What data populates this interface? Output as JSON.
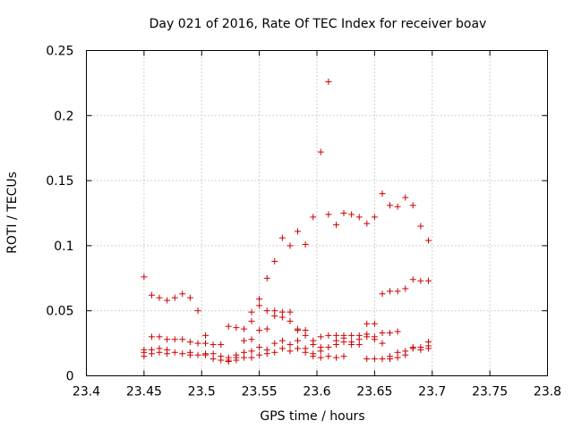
{
  "chart_data": {
    "type": "scatter",
    "title": "Day 021 of 2016, Rate Of TEC Index for receiver boav",
    "xlabel": "GPS time / hours",
    "ylabel": "ROTI / TECUs",
    "xlim": [
      23.4,
      23.8
    ],
    "ylim": [
      0,
      0.25
    ],
    "xticks": [
      23.4,
      23.45,
      23.5,
      23.55,
      23.6,
      23.65,
      23.7,
      23.75,
      23.8
    ],
    "xtick_labels": [
      "23.4",
      "23.45",
      "23.5",
      "23.55",
      "23.6",
      "23.65",
      "23.7",
      "23.75",
      "23.8"
    ],
    "yticks": [
      0,
      0.05,
      0.1,
      0.15,
      0.2,
      0.25
    ],
    "ytick_labels": [
      "0",
      "0.05",
      "0.1",
      "0.15",
      "0.2",
      "0.25"
    ],
    "grid": true,
    "marker": "+",
    "color": "#cc0000",
    "series": [
      {
        "name": "ROTI",
        "points": [
          [
            23.45,
            0.076
          ],
          [
            23.45,
            0.02
          ],
          [
            23.45,
            0.018
          ],
          [
            23.45,
            0.015
          ],
          [
            23.4567,
            0.062
          ],
          [
            23.4567,
            0.03
          ],
          [
            23.4567,
            0.02
          ],
          [
            23.4567,
            0.017
          ],
          [
            23.4633,
            0.06
          ],
          [
            23.4633,
            0.03
          ],
          [
            23.4633,
            0.021
          ],
          [
            23.4633,
            0.018
          ],
          [
            23.47,
            0.058
          ],
          [
            23.47,
            0.028
          ],
          [
            23.47,
            0.02
          ],
          [
            23.47,
            0.017
          ],
          [
            23.4767,
            0.06
          ],
          [
            23.4767,
            0.028
          ],
          [
            23.4767,
            0.018
          ],
          [
            23.4833,
            0.063
          ],
          [
            23.4833,
            0.028
          ],
          [
            23.4833,
            0.017
          ],
          [
            23.49,
            0.06
          ],
          [
            23.49,
            0.026
          ],
          [
            23.49,
            0.018
          ],
          [
            23.49,
            0.016
          ],
          [
            23.4967,
            0.05
          ],
          [
            23.4967,
            0.025
          ],
          [
            23.4967,
            0.016
          ],
          [
            23.5033,
            0.031
          ],
          [
            23.5033,
            0.025
          ],
          [
            23.5033,
            0.017
          ],
          [
            23.5033,
            0.016
          ],
          [
            23.51,
            0.024
          ],
          [
            23.51,
            0.017
          ],
          [
            23.51,
            0.013
          ],
          [
            23.5167,
            0.024
          ],
          [
            23.5167,
            0.015
          ],
          [
            23.5167,
            0.012
          ],
          [
            23.5233,
            0.038
          ],
          [
            23.5233,
            0.014
          ],
          [
            23.5233,
            0.012
          ],
          [
            23.5233,
            0.011
          ],
          [
            23.53,
            0.037
          ],
          [
            23.53,
            0.016
          ],
          [
            23.53,
            0.014
          ],
          [
            23.53,
            0.012
          ],
          [
            23.5367,
            0.036
          ],
          [
            23.5367,
            0.027
          ],
          [
            23.5367,
            0.018
          ],
          [
            23.5367,
            0.014
          ],
          [
            23.5433,
            0.049
          ],
          [
            23.5433,
            0.042
          ],
          [
            23.5433,
            0.028
          ],
          [
            23.5433,
            0.019
          ],
          [
            23.5433,
            0.014
          ],
          [
            23.55,
            0.059
          ],
          [
            23.55,
            0.054
          ],
          [
            23.55,
            0.035
          ],
          [
            23.55,
            0.022
          ],
          [
            23.55,
            0.016
          ],
          [
            23.5567,
            0.075
          ],
          [
            23.5567,
            0.05
          ],
          [
            23.5567,
            0.036
          ],
          [
            23.5567,
            0.02
          ],
          [
            23.5567,
            0.017
          ],
          [
            23.5633,
            0.088
          ],
          [
            23.5633,
            0.05
          ],
          [
            23.5633,
            0.046
          ],
          [
            23.5633,
            0.025
          ],
          [
            23.5633,
            0.018
          ],
          [
            23.57,
            0.106
          ],
          [
            23.57,
            0.049
          ],
          [
            23.57,
            0.045
          ],
          [
            23.57,
            0.027
          ],
          [
            23.57,
            0.021
          ],
          [
            23.5767,
            0.1
          ],
          [
            23.5767,
            0.049
          ],
          [
            23.5767,
            0.042
          ],
          [
            23.5767,
            0.024
          ],
          [
            23.5767,
            0.019
          ],
          [
            23.5833,
            0.111
          ],
          [
            23.5833,
            0.036
          ],
          [
            23.5833,
            0.035
          ],
          [
            23.5833,
            0.027
          ],
          [
            23.5833,
            0.021
          ],
          [
            23.59,
            0.101
          ],
          [
            23.59,
            0.035
          ],
          [
            23.59,
            0.031
          ],
          [
            23.59,
            0.021
          ],
          [
            23.59,
            0.018
          ],
          [
            23.5967,
            0.122
          ],
          [
            23.5967,
            0.027
          ],
          [
            23.5967,
            0.024
          ],
          [
            23.5967,
            0.017
          ],
          [
            23.5967,
            0.015
          ],
          [
            23.6033,
            0.172
          ],
          [
            23.6033,
            0.03
          ],
          [
            23.6033,
            0.022
          ],
          [
            23.6033,
            0.019
          ],
          [
            23.6033,
            0.014
          ],
          [
            23.61,
            0.226
          ],
          [
            23.61,
            0.124
          ],
          [
            23.61,
            0.031
          ],
          [
            23.61,
            0.022
          ],
          [
            23.61,
            0.015
          ],
          [
            23.6167,
            0.116
          ],
          [
            23.6167,
            0.031
          ],
          [
            23.6167,
            0.027
          ],
          [
            23.6167,
            0.024
          ],
          [
            23.6167,
            0.014
          ],
          [
            23.6233,
            0.125
          ],
          [
            23.6233,
            0.031
          ],
          [
            23.6233,
            0.029
          ],
          [
            23.6233,
            0.026
          ],
          [
            23.6233,
            0.015
          ],
          [
            23.63,
            0.124
          ],
          [
            23.63,
            0.031
          ],
          [
            23.63,
            0.026
          ],
          [
            23.63,
            0.024
          ],
          [
            23.6367,
            0.122
          ],
          [
            23.6367,
            0.031
          ],
          [
            23.6367,
            0.028
          ],
          [
            23.6367,
            0.024
          ],
          [
            23.6433,
            0.117
          ],
          [
            23.6433,
            0.04
          ],
          [
            23.6433,
            0.032
          ],
          [
            23.6433,
            0.03
          ],
          [
            23.6433,
            0.013
          ],
          [
            23.65,
            0.122
          ],
          [
            23.65,
            0.04
          ],
          [
            23.65,
            0.03
          ],
          [
            23.65,
            0.028
          ],
          [
            23.65,
            0.013
          ],
          [
            23.6567,
            0.14
          ],
          [
            23.6567,
            0.063
          ],
          [
            23.6567,
            0.033
          ],
          [
            23.6567,
            0.025
          ],
          [
            23.6567,
            0.013
          ],
          [
            23.6633,
            0.131
          ],
          [
            23.6633,
            0.065
          ],
          [
            23.6633,
            0.033
          ],
          [
            23.6633,
            0.015
          ],
          [
            23.6633,
            0.013
          ],
          [
            23.67,
            0.13
          ],
          [
            23.67,
            0.065
          ],
          [
            23.67,
            0.034
          ],
          [
            23.67,
            0.018
          ],
          [
            23.67,
            0.014
          ],
          [
            23.6767,
            0.137
          ],
          [
            23.6767,
            0.067
          ],
          [
            23.6767,
            0.019
          ],
          [
            23.6767,
            0.016
          ],
          [
            23.6833,
            0.131
          ],
          [
            23.6833,
            0.074
          ],
          [
            23.6833,
            0.022
          ],
          [
            23.6833,
            0.021
          ],
          [
            23.69,
            0.115
          ],
          [
            23.69,
            0.073
          ],
          [
            23.69,
            0.022
          ],
          [
            23.69,
            0.02
          ],
          [
            23.6967,
            0.104
          ],
          [
            23.6967,
            0.073
          ],
          [
            23.6967,
            0.026
          ],
          [
            23.6967,
            0.023
          ],
          [
            23.6967,
            0.021
          ]
        ]
      }
    ]
  }
}
